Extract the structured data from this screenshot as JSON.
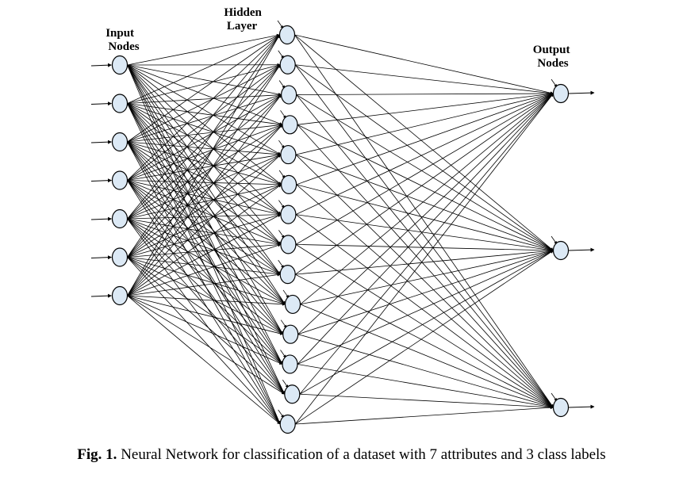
{
  "diagram": {
    "labels": {
      "input": [
        "Input",
        "Nodes"
      ],
      "hidden": [
        "Hidden",
        "Layer"
      ],
      "output": [
        "Output",
        "Nodes"
      ]
    },
    "layers": {
      "input_nodes": 7,
      "hidden_nodes": 14,
      "output_nodes": 3
    },
    "colors": {
      "node_fill": "#dce9f5",
      "stroke": "#000000"
    }
  },
  "caption": {
    "label": "Fig. 1.",
    "text": "Neural Network for classification of a dataset with 7 attributes and 3 class labels"
  }
}
